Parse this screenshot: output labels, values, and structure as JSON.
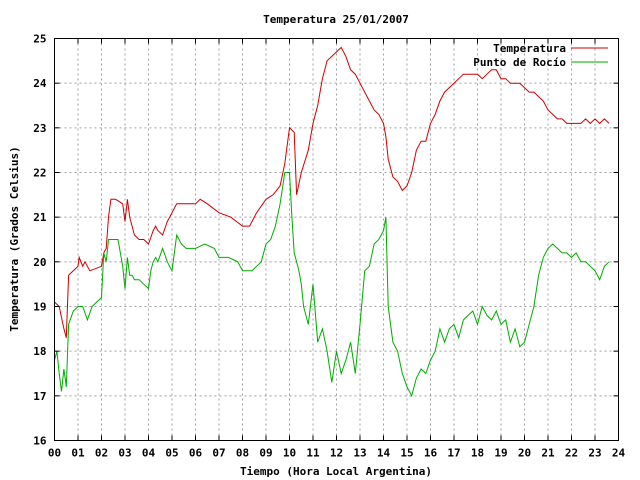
{
  "chart_data": {
    "type": "line",
    "title": "Temperatura 25/01/2007",
    "xlabel": "Tiempo (Hora Local Argentina)",
    "ylabel": "Temperatura (Grados Celsius)",
    "xlim": [
      0,
      24
    ],
    "ylim": [
      16,
      25
    ],
    "x_ticks": [
      "00",
      "01",
      "02",
      "03",
      "04",
      "05",
      "06",
      "07",
      "08",
      "09",
      "10",
      "11",
      "12",
      "13",
      "14",
      "15",
      "16",
      "17",
      "18",
      "19",
      "20",
      "21",
      "22",
      "23",
      "24"
    ],
    "y_ticks": [
      "16",
      "17",
      "18",
      "19",
      "20",
      "21",
      "22",
      "23",
      "24",
      "25"
    ],
    "grid": true,
    "legend_position": "top-right",
    "series": [
      {
        "name": "Temperatura",
        "color": "#cc0000",
        "x": [
          0.0,
          0.2,
          0.4,
          0.5,
          0.6,
          1.0,
          1.05,
          1.2,
          1.3,
          1.5,
          2.0,
          2.1,
          2.2,
          2.3,
          2.4,
          2.6,
          2.9,
          3.0,
          3.1,
          3.2,
          3.3,
          3.4,
          3.6,
          3.8,
          4.0,
          4.2,
          4.3,
          4.4,
          4.6,
          4.8,
          5.0,
          5.2,
          5.5,
          6.0,
          6.2,
          6.5,
          7.0,
          7.5,
          8.0,
          8.3,
          8.6,
          9.0,
          9.3,
          9.6,
          9.8,
          10.0,
          10.2,
          10.3,
          10.5,
          10.8,
          11.0,
          11.2,
          11.4,
          11.6,
          11.8,
          12.0,
          12.2,
          12.4,
          12.6,
          12.8,
          13.0,
          13.2,
          13.4,
          13.6,
          13.8,
          14.0,
          14.1,
          14.2,
          14.4,
          14.6,
          14.8,
          15.0,
          15.2,
          15.4,
          15.6,
          15.8,
          16.0,
          16.2,
          16.4,
          16.6,
          16.8,
          17.0,
          17.2,
          17.4,
          17.6,
          17.8,
          18.0,
          18.2,
          18.4,
          18.6,
          18.8,
          19.0,
          19.2,
          19.4,
          19.6,
          19.8,
          20.0,
          20.2,
          20.4,
          20.6,
          20.8,
          21.0,
          21.2,
          21.4,
          21.6,
          21.8,
          22.0,
          22.2,
          22.4,
          22.6,
          22.8,
          23.0,
          23.2,
          23.4,
          23.6
        ],
        "values": [
          19.1,
          19.0,
          18.5,
          18.3,
          19.7,
          19.9,
          20.1,
          19.9,
          20.0,
          19.8,
          19.9,
          20.2,
          20.3,
          21.0,
          21.4,
          21.4,
          21.3,
          20.9,
          21.4,
          21.0,
          20.8,
          20.6,
          20.5,
          20.5,
          20.4,
          20.7,
          20.8,
          20.7,
          20.6,
          20.9,
          21.1,
          21.3,
          21.3,
          21.3,
          21.4,
          21.3,
          21.1,
          21.0,
          20.8,
          20.8,
          21.1,
          21.4,
          21.5,
          21.7,
          22.2,
          23.0,
          22.9,
          21.5,
          22.0,
          22.5,
          23.1,
          23.5,
          24.1,
          24.5,
          24.6,
          24.7,
          24.8,
          24.6,
          24.3,
          24.2,
          24.0,
          23.8,
          23.6,
          23.4,
          23.3,
          23.1,
          22.8,
          22.3,
          21.9,
          21.8,
          21.6,
          21.7,
          22.0,
          22.5,
          22.7,
          22.7,
          23.1,
          23.3,
          23.6,
          23.8,
          23.9,
          24.0,
          24.1,
          24.2,
          24.2,
          24.2,
          24.2,
          24.1,
          24.2,
          24.3,
          24.3,
          24.1,
          24.1,
          24.0,
          24.0,
          24.0,
          23.9,
          23.8,
          23.8,
          23.7,
          23.6,
          23.4,
          23.3,
          23.2,
          23.2,
          23.1,
          23.1,
          23.1,
          23.1,
          23.2,
          23.1,
          23.2,
          23.1,
          23.2,
          23.1
        ]
      },
      {
        "name": "Punto de Rocío",
        "color": "#00aa00",
        "x": [
          0.0,
          0.1,
          0.2,
          0.3,
          0.4,
          0.5,
          0.6,
          0.8,
          1.0,
          1.2,
          1.4,
          1.6,
          1.8,
          2.0,
          2.1,
          2.2,
          2.3,
          2.4,
          2.5,
          2.7,
          2.9,
          3.0,
          3.1,
          3.2,
          3.3,
          3.4,
          3.6,
          3.8,
          4.0,
          4.1,
          4.2,
          4.3,
          4.4,
          4.6,
          4.8,
          5.0,
          5.2,
          5.4,
          5.6,
          6.0,
          6.4,
          6.8,
          7.0,
          7.4,
          7.8,
          8.0,
          8.4,
          8.6,
          8.8,
          9.0,
          9.2,
          9.4,
          9.6,
          9.8,
          10.0,
          10.1,
          10.2,
          10.3,
          10.4,
          10.5,
          10.6,
          10.8,
          11.0,
          11.2,
          11.4,
          11.6,
          11.8,
          12.0,
          12.2,
          12.4,
          12.6,
          12.8,
          13.0,
          13.2,
          13.4,
          13.6,
          13.8,
          14.0,
          14.1,
          14.2,
          14.4,
          14.6,
          14.8,
          15.0,
          15.2,
          15.4,
          15.6,
          15.8,
          16.0,
          16.2,
          16.4,
          16.6,
          16.8,
          17.0,
          17.2,
          17.4,
          17.6,
          17.8,
          18.0,
          18.2,
          18.4,
          18.6,
          18.8,
          19.0,
          19.2,
          19.4,
          19.6,
          19.8,
          20.0,
          20.2,
          20.4,
          20.6,
          20.8,
          21.0,
          21.2,
          21.4,
          21.6,
          21.8,
          22.0,
          22.2,
          22.4,
          22.6,
          22.8,
          23.0,
          23.2,
          23.4,
          23.6
        ],
        "values": [
          17.8,
          18.0,
          17.5,
          17.1,
          17.6,
          17.2,
          18.6,
          18.9,
          19.0,
          19.0,
          18.7,
          19.0,
          19.1,
          19.2,
          20.2,
          20.0,
          20.5,
          20.5,
          20.5,
          20.5,
          19.9,
          19.4,
          20.1,
          19.7,
          19.7,
          19.6,
          19.6,
          19.5,
          19.4,
          19.8,
          20.0,
          20.1,
          20.0,
          20.3,
          20.0,
          19.8,
          20.6,
          20.4,
          20.3,
          20.3,
          20.4,
          20.3,
          20.1,
          20.1,
          20.0,
          19.8,
          19.8,
          19.9,
          20.0,
          20.4,
          20.5,
          20.8,
          21.3,
          22.0,
          22.0,
          21.0,
          20.2,
          20.0,
          19.8,
          19.5,
          19.0,
          18.6,
          19.5,
          18.2,
          18.5,
          18.0,
          17.3,
          18.0,
          17.5,
          17.8,
          18.2,
          17.5,
          18.6,
          19.8,
          19.9,
          20.4,
          20.5,
          20.7,
          21.0,
          19.0,
          18.2,
          18.0,
          17.5,
          17.2,
          17.0,
          17.4,
          17.6,
          17.5,
          17.8,
          18.0,
          18.5,
          18.2,
          18.5,
          18.6,
          18.3,
          18.7,
          18.8,
          18.9,
          18.6,
          19.0,
          18.8,
          18.7,
          18.9,
          18.6,
          18.7,
          18.2,
          18.5,
          18.1,
          18.2,
          18.6,
          19.0,
          19.7,
          20.1,
          20.3,
          20.4,
          20.3,
          20.2,
          20.2,
          20.1,
          20.2,
          20.0,
          20.0,
          19.9,
          19.8,
          19.6,
          19.9,
          20.0
        ]
      }
    ]
  }
}
